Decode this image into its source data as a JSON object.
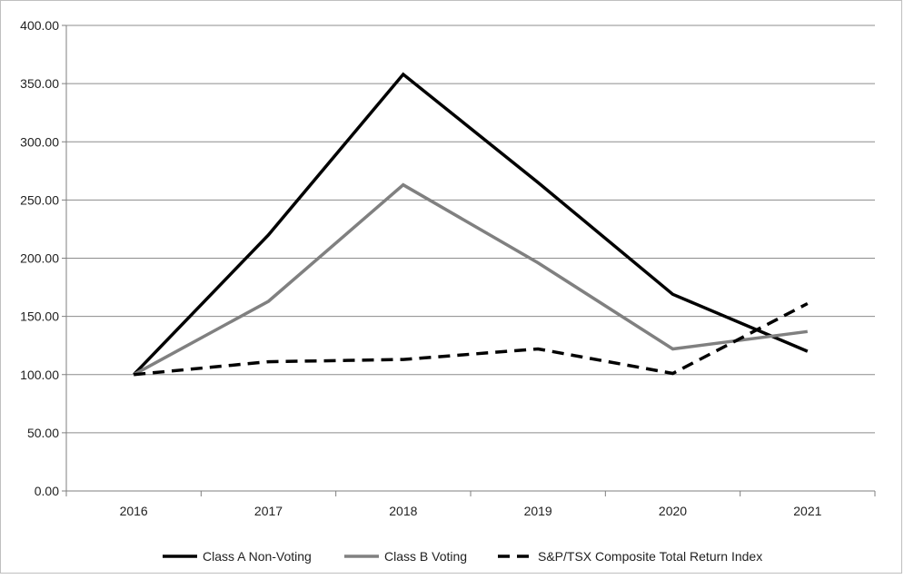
{
  "chart_data": {
    "type": "line",
    "categories": [
      "2016",
      "2017",
      "2018",
      "2019",
      "2020",
      "2021"
    ],
    "ylim": [
      0,
      400
    ],
    "yticks": [
      "0.00",
      "50.00",
      "100.00",
      "150.00",
      "200.00",
      "250.00",
      "300.00",
      "350.00",
      "400.00"
    ],
    "grid": true,
    "legend_position": "bottom",
    "series": [
      {
        "name": "Class A Non-Voting",
        "values": [
          100,
          220,
          358,
          265,
          169,
          120
        ],
        "color": "#000000",
        "dash": "solid"
      },
      {
        "name": "Class B Voting",
        "values": [
          100,
          163,
          263,
          196,
          122,
          137
        ],
        "color": "#808080",
        "dash": "solid"
      },
      {
        "name": "S&P/TSX Composite Total Return Index",
        "values": [
          100,
          111,
          113,
          122,
          101,
          161
        ],
        "color": "#000000",
        "dash": "dashed"
      }
    ]
  }
}
